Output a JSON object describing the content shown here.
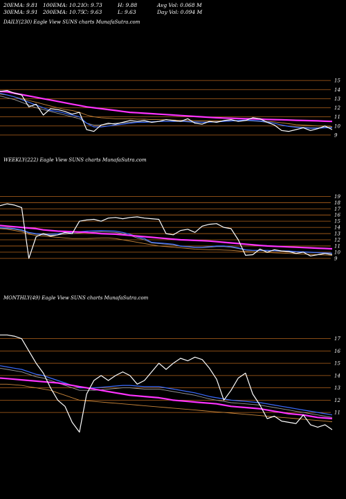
{
  "header": {
    "ema20": "20EMA: 9.81",
    "ema100": "100EMA: 10.21",
    "open": "O: 9.73",
    "high": "H: 9.88",
    "avgvol": "Avg Vol: 0.068 M",
    "ema30": "30EMA: 9.91",
    "ema200": "200EMA: 10.75",
    "close": "C: 9.63",
    "low": "L: 9.63",
    "dayvol": "Day Vol: 0.094 M"
  },
  "chart_data": [
    {
      "type": "line",
      "title": "DAILY(230) Eagle View SUNS charts MunafaSutra.com",
      "ylim": [
        8,
        16
      ],
      "y_ticks": [
        9,
        10,
        11,
        12,
        13,
        14,
        15
      ],
      "x": [
        0,
        5,
        10,
        15,
        20,
        25,
        30,
        35,
        40,
        45,
        50,
        55,
        60,
        65,
        70,
        75,
        80,
        85,
        90,
        95,
        100,
        105,
        110,
        115,
        120,
        125,
        130,
        135,
        140,
        145,
        150,
        155,
        160,
        165,
        170,
        175,
        180,
        185,
        190,
        195,
        200,
        205,
        210,
        215,
        220,
        225,
        230
      ],
      "series": [
        {
          "color": "#ffffff",
          "values": [
            13.8,
            13.9,
            13.6,
            13.4,
            12.1,
            12.4,
            11.2,
            11.9,
            11.8,
            11.6,
            11.3,
            11.5,
            9.6,
            9.4,
            10.1,
            10.3,
            10.2,
            10.4,
            10.6,
            10.5,
            10.6,
            10.4,
            10.5,
            10.7,
            10.6,
            10.5,
            10.8,
            10.3,
            10.2,
            10.5,
            10.4,
            10.6,
            10.7,
            10.5,
            10.6,
            10.9,
            10.8,
            10.4,
            10.1,
            9.5,
            9.4,
            9.6,
            9.8,
            9.5,
            9.7,
            10.0,
            9.6
          ]
        },
        {
          "color": "#ff33ff",
          "values": [
            13.8,
            13.75,
            13.6,
            13.45,
            13.3,
            13.15,
            13.0,
            12.85,
            12.7,
            12.55,
            12.4,
            12.25,
            12.1,
            12.0,
            11.9,
            11.8,
            11.7,
            11.6,
            11.5,
            11.45,
            11.4,
            11.35,
            11.3,
            11.25,
            11.2,
            11.15,
            11.1,
            11.05,
            11.0,
            10.95,
            10.9,
            10.87,
            10.85,
            10.82,
            10.8,
            10.78,
            10.75,
            10.72,
            10.7,
            10.68,
            10.65,
            10.62,
            10.6,
            10.58,
            10.56,
            10.52,
            10.5
          ]
        },
        {
          "color": "#3b6cff",
          "values": [
            13.6,
            13.4,
            13.2,
            12.9,
            12.6,
            12.3,
            12.0,
            11.7,
            11.6,
            11.4,
            11.2,
            11.0,
            10.3,
            9.9,
            9.9,
            10.0,
            10.1,
            10.2,
            10.3,
            10.4,
            10.4,
            10.45,
            10.5,
            10.5,
            10.5,
            10.55,
            10.5,
            10.45,
            10.4,
            10.42,
            10.45,
            10.5,
            10.55,
            10.6,
            10.65,
            10.6,
            10.55,
            10.45,
            10.3,
            10.1,
            9.95,
            9.85,
            9.8,
            9.75,
            9.75,
            9.8,
            9.8
          ]
        },
        {
          "color": "#c9863a",
          "values": [
            13.5,
            13.4,
            13.2,
            13.0,
            12.8,
            12.6,
            12.4,
            12.2,
            12.0,
            11.8,
            11.7,
            11.5,
            11.2,
            11.0,
            10.9,
            10.85,
            10.8,
            10.8,
            10.8,
            10.75,
            10.75,
            10.7,
            10.7,
            10.68,
            10.65,
            10.62,
            10.6,
            10.58,
            10.55,
            10.55,
            10.55,
            10.55,
            10.6,
            10.6,
            10.6,
            10.6,
            10.55,
            10.5,
            10.45,
            10.35,
            10.25,
            10.15,
            10.1,
            10.05,
            10.0,
            10.0,
            9.95
          ]
        },
        {
          "color": "#9a9a9a",
          "values": [
            13.3,
            13.1,
            12.9,
            12.6,
            12.3,
            12.0,
            11.8,
            11.6,
            11.4,
            11.2,
            11.0,
            10.8,
            10.3,
            10.1,
            10.1,
            10.2,
            10.3,
            10.35,
            10.4,
            10.4,
            10.45,
            10.45,
            10.5,
            10.5,
            10.5,
            10.5,
            10.45,
            10.4,
            10.4,
            10.42,
            10.45,
            10.5,
            10.55,
            10.55,
            10.6,
            10.55,
            10.5,
            10.4,
            10.3,
            10.1,
            9.95,
            9.9,
            9.85,
            9.8,
            9.8,
            9.85,
            9.85
          ]
        }
      ]
    },
    {
      "type": "line",
      "title": "WEEKLY(222) Eagle View SUNS charts MunafaSutra.com",
      "ylim": [
        8.2,
        19.6
      ],
      "y_ticks": [
        9,
        10,
        11,
        12,
        13,
        14,
        15,
        16,
        17,
        18,
        19
      ],
      "x": [
        0,
        5,
        10,
        15,
        20,
        25,
        30,
        35,
        40,
        45,
        50,
        55,
        60,
        65,
        70,
        75,
        80,
        85,
        90,
        95,
        100,
        105,
        110,
        115,
        120,
        125,
        130,
        135,
        140,
        145,
        150,
        155,
        160,
        165,
        170,
        175,
        180,
        185,
        190,
        195,
        200,
        205,
        210,
        215,
        220,
        225,
        230
      ],
      "series": [
        {
          "color": "#ffffff",
          "values": [
            17.5,
            17.8,
            17.6,
            17.2,
            9.0,
            12.5,
            13.0,
            12.6,
            12.8,
            13.2,
            13.0,
            15.0,
            15.2,
            15.3,
            15.0,
            15.5,
            15.6,
            15.4,
            15.6,
            15.7,
            15.5,
            15.4,
            15.3,
            13.0,
            12.8,
            13.5,
            13.7,
            13.2,
            14.2,
            14.5,
            14.6,
            14.0,
            13.8,
            12.0,
            9.5,
            9.6,
            10.5,
            10.0,
            10.4,
            10.2,
            10.1,
            9.8,
            10.0,
            9.4,
            9.6,
            9.8,
            9.6
          ]
        },
        {
          "color": "#ff33ff",
          "values": [
            14.3,
            14.2,
            14.1,
            14.0,
            13.9,
            13.8,
            13.6,
            13.5,
            13.4,
            13.35,
            13.3,
            13.25,
            13.2,
            13.1,
            13.0,
            12.95,
            12.9,
            12.8,
            12.7,
            12.6,
            12.5,
            12.4,
            12.3,
            12.2,
            12.1,
            12.0,
            11.95,
            11.9,
            11.85,
            11.8,
            11.7,
            11.6,
            11.5,
            11.4,
            11.3,
            11.2,
            11.1,
            11.0,
            10.95,
            10.9,
            10.85,
            10.8,
            10.75,
            10.7,
            10.65,
            10.6,
            10.55
          ]
        },
        {
          "color": "#3b6cff",
          "values": [
            14.0,
            13.9,
            13.8,
            13.6,
            13.2,
            13.0,
            12.9,
            12.9,
            13.0,
            13.1,
            13.2,
            13.3,
            13.4,
            13.45,
            13.5,
            13.45,
            13.4,
            13.2,
            12.9,
            12.5,
            12.2,
            11.6,
            11.5,
            11.4,
            11.3,
            11.0,
            10.9,
            10.8,
            10.8,
            10.9,
            11.0,
            11.0,
            10.9,
            10.7,
            10.4,
            10.3,
            10.3,
            10.3,
            10.25,
            10.2,
            10.2,
            10.1,
            10.05,
            10.0,
            9.95,
            9.9,
            9.85
          ]
        },
        {
          "color": "#c9863a",
          "values": [
            13.8,
            13.7,
            13.5,
            13.3,
            12.9,
            12.7,
            12.6,
            12.5,
            12.4,
            12.3,
            12.2,
            12.2,
            12.2,
            12.25,
            12.3,
            12.3,
            12.2,
            12.0,
            11.8,
            11.6,
            11.4,
            11.2,
            11.0,
            10.9,
            10.8,
            10.7,
            10.6,
            10.5,
            10.45,
            10.4,
            10.4,
            10.35,
            10.3,
            10.2,
            10.1,
            10.05,
            10.0,
            9.95,
            9.9,
            9.85,
            9.8,
            9.75,
            9.7,
            9.65,
            9.6,
            9.55,
            9.5
          ]
        },
        {
          "color": "#9a9a9a",
          "values": [
            13.9,
            13.8,
            13.7,
            13.5,
            13.1,
            12.9,
            12.8,
            12.75,
            12.8,
            12.9,
            13.0,
            13.1,
            13.2,
            13.25,
            13.3,
            13.25,
            13.2,
            13.0,
            12.7,
            12.3,
            12.0,
            11.5,
            11.4,
            11.3,
            11.2,
            10.95,
            10.85,
            10.75,
            10.75,
            10.8,
            10.9,
            10.9,
            10.8,
            10.6,
            10.35,
            10.25,
            10.25,
            10.25,
            10.2,
            10.15,
            10.1,
            10.05,
            10.0,
            9.95,
            9.9,
            9.85,
            9.8
          ]
        }
      ]
    },
    {
      "type": "line",
      "title": "MONTHLY(49) Eagle View SUNS charts MunafaSutra.com",
      "ylim": [
        9.6,
        17.6
      ],
      "y_ticks": [
        11,
        12,
        13,
        14,
        15,
        16,
        17
      ],
      "x": [
        0,
        5,
        10,
        15,
        20,
        25,
        30,
        35,
        40,
        45,
        50,
        55,
        60,
        65,
        70,
        75,
        80,
        85,
        90,
        95,
        100,
        105,
        110,
        115,
        120,
        125,
        130,
        135,
        140,
        145,
        150,
        155,
        160,
        165,
        170,
        175,
        180,
        185,
        190,
        195,
        200,
        205,
        210,
        215,
        220,
        225,
        230
      ],
      "series": [
        {
          "color": "#ffffff",
          "values": [
            17.3,
            17.3,
            17.2,
            17.0,
            16.0,
            15.0,
            14.2,
            13.0,
            12.0,
            11.5,
            10.2,
            9.4,
            12.5,
            13.6,
            14.0,
            13.6,
            14.0,
            14.3,
            14.0,
            13.3,
            13.6,
            14.3,
            15.0,
            14.5,
            15.0,
            15.4,
            15.2,
            15.5,
            15.3,
            14.6,
            13.7,
            12.0,
            12.8,
            13.8,
            14.2,
            12.5,
            11.6,
            10.5,
            10.7,
            10.3,
            10.2,
            10.1,
            10.8,
            10.0,
            9.8,
            10.0,
            9.6
          ]
        },
        {
          "color": "#ff33ff",
          "values": [
            13.8,
            13.75,
            13.7,
            13.65,
            13.6,
            13.55,
            13.5,
            13.45,
            13.4,
            13.3,
            13.2,
            13.1,
            13.0,
            12.9,
            12.8,
            12.7,
            12.6,
            12.5,
            12.4,
            12.35,
            12.3,
            12.25,
            12.2,
            12.1,
            12.0,
            11.95,
            11.9,
            11.85,
            11.8,
            11.75,
            11.7,
            11.6,
            11.5,
            11.45,
            11.4,
            11.35,
            11.3,
            11.2,
            11.1,
            11.0,
            10.9,
            10.85,
            10.8,
            10.7,
            10.6,
            10.55,
            10.5
          ]
        },
        {
          "color": "#3b6cff",
          "values": [
            14.8,
            14.7,
            14.6,
            14.5,
            14.3,
            14.1,
            14.0,
            13.8,
            13.6,
            13.4,
            13.2,
            13.0,
            13.0,
            13.0,
            13.05,
            13.1,
            13.15,
            13.2,
            13.2,
            13.15,
            13.1,
            13.1,
            13.1,
            13.0,
            12.9,
            12.8,
            12.7,
            12.6,
            12.45,
            12.3,
            12.2,
            12.1,
            12.0,
            11.95,
            11.9,
            11.85,
            11.8,
            11.7,
            11.6,
            11.5,
            11.4,
            11.3,
            11.2,
            11.1,
            11.0,
            10.9,
            10.8
          ]
        },
        {
          "color": "#c9863a",
          "values": [
            13.3,
            13.3,
            13.25,
            13.2,
            13.1,
            13.0,
            12.9,
            12.8,
            12.6,
            12.4,
            12.2,
            12.0,
            11.95,
            11.9,
            11.85,
            11.8,
            11.75,
            11.7,
            11.65,
            11.6,
            11.55,
            11.5,
            11.45,
            11.4,
            11.35,
            11.3,
            11.25,
            11.2,
            11.15,
            11.1,
            11.05,
            11.0,
            10.95,
            10.9,
            10.85,
            10.8,
            10.75,
            10.7,
            10.65,
            10.6,
            10.55,
            10.5,
            10.45,
            10.4,
            10.35,
            10.3,
            10.25
          ]
        },
        {
          "color": "#9a9a9a",
          "values": [
            14.6,
            14.5,
            14.4,
            14.3,
            14.1,
            13.9,
            13.8,
            13.6,
            13.4,
            13.2,
            13.0,
            12.8,
            12.8,
            12.8,
            12.85,
            12.9,
            12.95,
            13.0,
            13.0,
            12.95,
            12.9,
            12.9,
            12.9,
            12.8,
            12.7,
            12.6,
            12.5,
            12.4,
            12.25,
            12.1,
            12.0,
            11.9,
            11.8,
            11.75,
            11.7,
            11.65,
            11.6,
            11.5,
            11.4,
            11.3,
            11.2,
            11.1,
            11.0,
            10.9,
            10.8,
            10.7,
            10.6
          ]
        }
      ]
    }
  ]
}
